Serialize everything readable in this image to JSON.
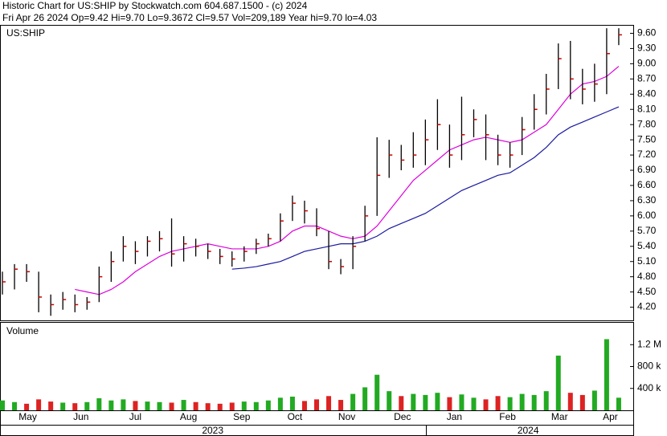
{
  "header": {
    "line1": "Historic Chart for US:SHIP by Stockwatch.com 604.687.1500 - (c) 2024",
    "line2": "Fri Apr 26 2024  Op=9.42  Hi=9.70  Lo=9.3672  Cl=9.57  Vol=209,189  Year hi=9.70  lo=4.03"
  },
  "chart_data": [
    {
      "type": "ohlc",
      "label": "US:SHIP",
      "bar_color": "#000000",
      "close_color": "#cc0000",
      "high": [
        4.9,
        5.05,
        5.05,
        4.9,
        4.45,
        4.5,
        4.45,
        4.4,
        5.0,
        5.3,
        5.6,
        5.5,
        5.6,
        5.7,
        5.95,
        5.6,
        5.55,
        5.45,
        5.35,
        5.3,
        5.4,
        5.55,
        5.65,
        6.05,
        6.4,
        6.3,
        6.15,
        5.7,
        5.15,
        5.6,
        6.2,
        7.55,
        7.5,
        7.4,
        7.65,
        7.9,
        8.3,
        7.8,
        8.35,
        8.1,
        8.0,
        7.6,
        7.45,
        7.95,
        8.4,
        8.8,
        9.4,
        9.45,
        8.9,
        9.0,
        9.7,
        9.7
      ],
      "low": [
        4.45,
        4.55,
        4.7,
        4.1,
        4.03,
        4.15,
        4.1,
        4.15,
        4.3,
        4.7,
        5.1,
        5.05,
        5.2,
        5.3,
        5.0,
        5.1,
        5.2,
        5.15,
        5.05,
        5.0,
        5.1,
        5.25,
        5.4,
        5.5,
        5.9,
        5.85,
        5.6,
        4.95,
        4.85,
        4.95,
        5.5,
        6.0,
        6.75,
        6.9,
        6.95,
        7.0,
        7.3,
        6.95,
        7.1,
        7.55,
        7.1,
        7.0,
        6.95,
        7.2,
        7.7,
        8.0,
        8.5,
        8.3,
        8.2,
        8.25,
        8.4,
        9.3672
      ],
      "close": [
        4.7,
        4.95,
        4.9,
        4.4,
        4.25,
        4.35,
        4.25,
        4.3,
        4.8,
        5.1,
        5.4,
        5.3,
        5.5,
        5.55,
        5.25,
        5.45,
        5.4,
        5.3,
        5.2,
        5.15,
        5.3,
        5.45,
        5.55,
        5.9,
        6.25,
        6.1,
        5.75,
        5.1,
        5.0,
        5.4,
        6.0,
        6.8,
        7.2,
        7.1,
        7.2,
        7.5,
        7.8,
        7.2,
        7.6,
        7.9,
        7.6,
        7.2,
        7.2,
        7.7,
        8.1,
        8.5,
        9.1,
        8.7,
        8.5,
        8.6,
        9.2,
        9.57
      ],
      "lines": [
        {
          "color": "#dd00dd",
          "values": [
            null,
            null,
            null,
            null,
            null,
            null,
            4.55,
            4.5,
            4.45,
            4.55,
            4.7,
            4.9,
            5.05,
            5.2,
            5.3,
            5.35,
            5.4,
            5.45,
            5.4,
            5.35,
            5.35,
            5.35,
            5.4,
            5.5,
            5.7,
            5.8,
            5.8,
            5.7,
            5.6,
            5.55,
            5.6,
            5.8,
            6.1,
            6.4,
            6.7,
            6.9,
            7.1,
            7.3,
            7.4,
            7.5,
            7.55,
            7.5,
            7.45,
            7.5,
            7.65,
            7.8,
            8.1,
            8.4,
            8.6,
            8.65,
            8.75,
            8.95
          ]
        },
        {
          "color": "#1a1aa0",
          "values": [
            null,
            null,
            null,
            null,
            null,
            null,
            null,
            null,
            null,
            null,
            null,
            null,
            null,
            null,
            null,
            null,
            null,
            null,
            null,
            4.95,
            4.97,
            5.0,
            5.05,
            5.1,
            5.2,
            5.3,
            5.35,
            5.4,
            5.45,
            5.45,
            5.5,
            5.6,
            5.75,
            5.85,
            5.95,
            6.05,
            6.2,
            6.35,
            6.5,
            6.6,
            6.7,
            6.8,
            6.85,
            7.0,
            7.15,
            7.35,
            7.6,
            7.75,
            7.85,
            7.95,
            8.05,
            8.15
          ]
        }
      ],
      "xlim": [
        -0.2,
        52.2
      ],
      "xticks": [
        {
          "value": 2.1,
          "label": "May"
        },
        {
          "value": 6.5,
          "label": "Jun"
        },
        {
          "value": 11.0,
          "label": "Jul"
        },
        {
          "value": 15.4,
          "label": "Aug"
        },
        {
          "value": 19.8,
          "label": "Sep"
        },
        {
          "value": 24.2,
          "label": "Oct"
        },
        {
          "value": 28.5,
          "label": "Nov"
        },
        {
          "value": 33.1,
          "label": "Dec"
        },
        {
          "value": 37.4,
          "label": "Jan"
        },
        {
          "value": 41.8,
          "label": "Feb"
        },
        {
          "value": 46.1,
          "label": "Mar"
        },
        {
          "value": 50.3,
          "label": "Apr"
        }
      ],
      "year_ticks": [
        {
          "value": 17.4,
          "label": "2023"
        },
        {
          "value": 43.5,
          "label": "2024"
        }
      ],
      "ylim": [
        3.94,
        9.75
      ],
      "yticks": [
        {
          "value": 4.2,
          "label": "4.20"
        },
        {
          "value": 4.5,
          "label": "4.50"
        },
        {
          "value": 4.8,
          "label": "4.80"
        },
        {
          "value": 5.1,
          "label": "5.10"
        },
        {
          "value": 5.4,
          "label": "5.40"
        },
        {
          "value": 5.7,
          "label": "5.70"
        },
        {
          "value": 6.0,
          "label": "6.00"
        },
        {
          "value": 6.3,
          "label": "6.30"
        },
        {
          "value": 6.6,
          "label": "6.60"
        },
        {
          "value": 6.9,
          "label": "6.90"
        },
        {
          "value": 7.2,
          "label": "7.20"
        },
        {
          "value": 7.5,
          "label": "7.50"
        },
        {
          "value": 7.8,
          "label": "7.80"
        },
        {
          "value": 8.1,
          "label": "8.10"
        },
        {
          "value": 8.4,
          "label": "8.40"
        },
        {
          "value": 8.7,
          "label": "8.70"
        },
        {
          "value": 9.0,
          "label": "9.00"
        },
        {
          "value": 9.3,
          "label": "9.30"
        },
        {
          "value": 9.6,
          "label": "9.60"
        }
      ]
    },
    {
      "type": "bar",
      "title": "Volume",
      "up_color": "#22aa22",
      "down_color": "#dd2222",
      "values": [
        180000,
        150000,
        120000,
        200000,
        160000,
        140000,
        130000,
        150000,
        220000,
        180000,
        200000,
        170000,
        160000,
        150000,
        140000,
        190000,
        150000,
        130000,
        120000,
        140000,
        160000,
        150000,
        180000,
        230000,
        250000,
        170000,
        200000,
        260000,
        190000,
        300000,
        420000,
        650000,
        350000,
        260000,
        300000,
        280000,
        320000,
        240000,
        290000,
        230000,
        200000,
        260000,
        240000,
        300000,
        280000,
        350000,
        1000000,
        320000,
        280000,
        360000,
        1300000,
        230000
      ],
      "ylim": [
        0,
        1600000
      ],
      "yticks": [
        {
          "value": 400000,
          "label": "400 k"
        },
        {
          "value": 800000,
          "label": "800 k"
        },
        {
          "value": 1200000,
          "label": "1.2 M"
        }
      ]
    }
  ]
}
